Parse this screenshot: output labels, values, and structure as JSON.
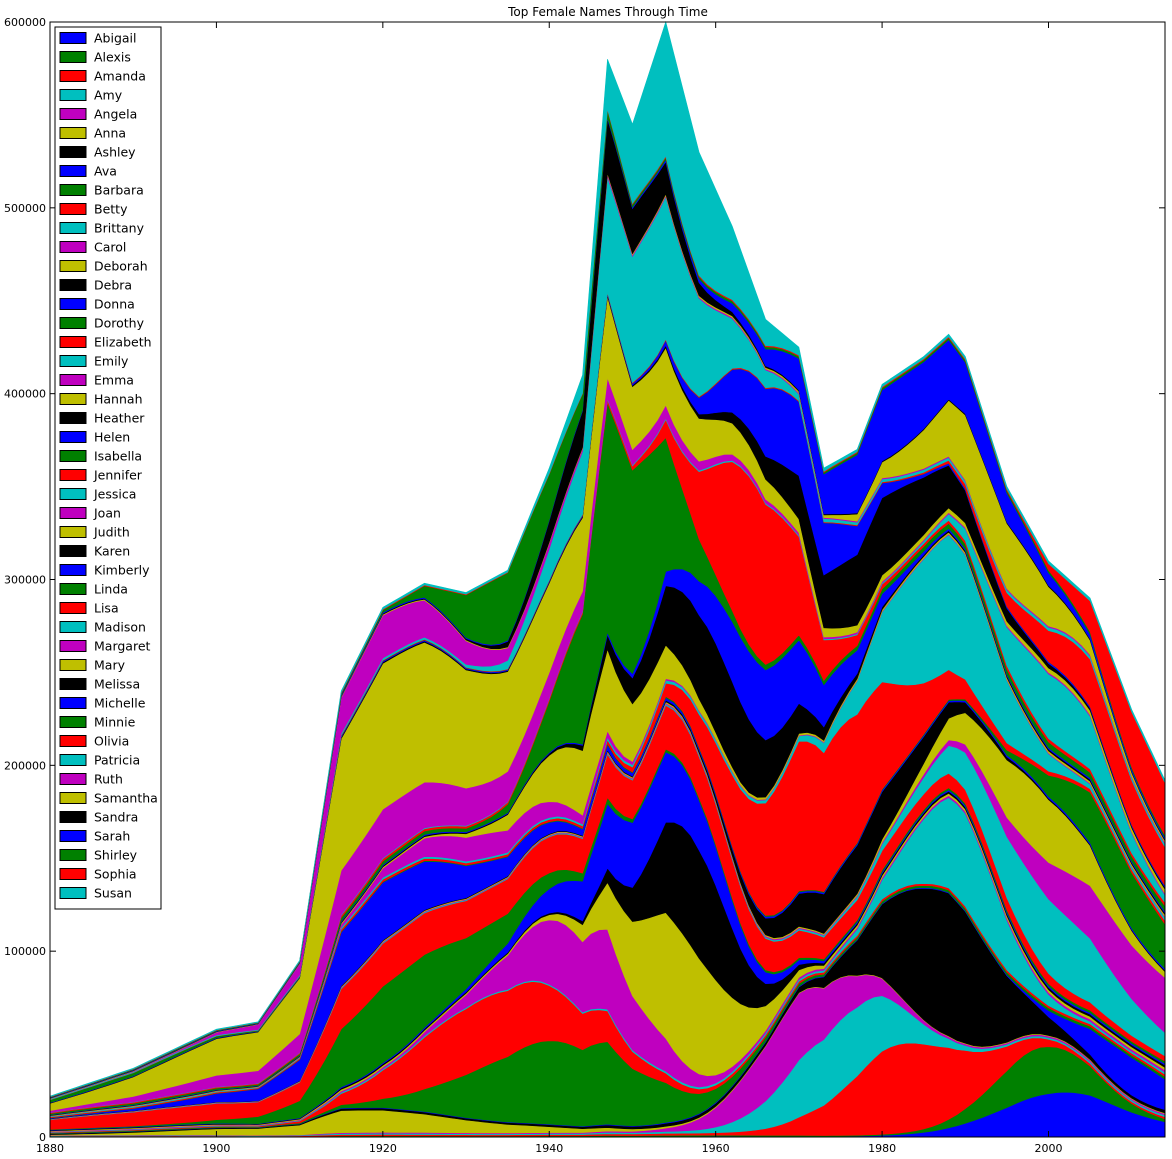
{
  "chart_data": {
    "type": "area",
    "stacked": true,
    "title": "Top Female Names Through Time",
    "xlabel": "",
    "ylabel": "",
    "xlim": [
      1880,
      2014
    ],
    "ylim": [
      0,
      600000
    ],
    "x_ticks": [
      1880,
      1900,
      1920,
      1940,
      1960,
      1980,
      2000
    ],
    "y_ticks": [
      0,
      100000,
      200000,
      300000,
      400000,
      500000,
      600000
    ],
    "grid": false,
    "legend_position": "top-left",
    "color_cycle": [
      "#0000ff",
      "#008000",
      "#ff0000",
      "#00bfbf",
      "#bf00bf",
      "#bfbf00",
      "#000000"
    ],
    "totals_approx": {
      "x": [
        1880,
        1890,
        1900,
        1905,
        1910,
        1915,
        1920,
        1925,
        1930,
        1935,
        1940,
        1944,
        1947,
        1950,
        1954,
        1958,
        1962,
        1966,
        1970,
        1973,
        1977,
        1980,
        1985,
        1988,
        1990,
        1995,
        2000,
        2005,
        2010,
        2014
      ],
      "y": [
        22000,
        37000,
        58000,
        62000,
        95000,
        240000,
        285000,
        298000,
        293000,
        305000,
        360000,
        410000,
        580000,
        545000,
        600000,
        530000,
        490000,
        440000,
        425000,
        360000,
        370000,
        405000,
        420000,
        432000,
        420000,
        350000,
        310000,
        290000,
        230000,
        192000
      ]
    },
    "series": [
      {
        "name": "Abigail",
        "x_peak": 2002,
        "peak": 15000,
        "width": 8
      },
      {
        "name": "Alexis",
        "x_peak": 1999,
        "peak": 16000,
        "width": 6
      },
      {
        "name": "Amanda",
        "x_peak": 1983,
        "peak": 35000,
        "width": 7
      },
      {
        "name": "Amy",
        "x_peak": 1975,
        "peak": 30000,
        "width": 6
      },
      {
        "name": "Angela",
        "x_peak": 1970,
        "peak": 25000,
        "width": 6
      },
      {
        "name": "Anna",
        "x_peak": 1915,
        "peak": 12000,
        "width": 15
      },
      {
        "name": "Ashley",
        "x_peak": 1987,
        "peak": 55000,
        "width": 6
      },
      {
        "name": "Ava",
        "x_peak": 2010,
        "peak": 14000,
        "width": 5
      },
      {
        "name": "Barbara",
        "x_peak": 1940,
        "peak": 45000,
        "width": 9
      },
      {
        "name": "Betty",
        "x_peak": 1933,
        "peak": 40000,
        "width": 9
      },
      {
        "name": "Brittany",
        "x_peak": 1989,
        "peak": 35000,
        "width": 5
      },
      {
        "name": "Carol",
        "x_peak": 1943,
        "peak": 38000,
        "width": 7
      },
      {
        "name": "Deborah",
        "x_peak": 1955,
        "peak": 45000,
        "width": 6
      },
      {
        "name": "Debra",
        "x_peak": 1957,
        "peak": 38000,
        "width": 5
      },
      {
        "name": "Donna",
        "x_peak": 1950,
        "peak": 28000,
        "width": 8
      },
      {
        "name": "Dorothy",
        "x_peak": 1922,
        "peak": 40000,
        "width": 10
      },
      {
        "name": "Elizabeth",
        "x_peak": 1920,
        "peak": 22000,
        "width": 40
      },
      {
        "name": "Emily",
        "x_peak": 2000,
        "peak": 25000,
        "width": 9
      },
      {
        "name": "Emma",
        "x_peak": 2010,
        "peak": 20000,
        "width": 10
      },
      {
        "name": "Hannah",
        "x_peak": 1998,
        "peak": 22000,
        "width": 7
      },
      {
        "name": "Heather",
        "x_peak": 1977,
        "peak": 20000,
        "width": 7
      },
      {
        "name": "Helen",
        "x_peak": 1918,
        "peak": 30000,
        "width": 12
      },
      {
        "name": "Isabella",
        "x_peak": 2009,
        "peak": 21000,
        "width": 6
      },
      {
        "name": "Jennifer",
        "x_peak": 1973,
        "peak": 60000,
        "width": 8
      },
      {
        "name": "Jessica",
        "x_peak": 1987,
        "peak": 52000,
        "width": 6
      },
      {
        "name": "Joan",
        "x_peak": 1932,
        "peak": 14000,
        "width": 8
      },
      {
        "name": "Judith",
        "x_peak": 1945,
        "peak": 35000,
        "width": 6
      },
      {
        "name": "Karen",
        "x_peak": 1960,
        "peak": 30000,
        "width": 7
      },
      {
        "name": "Kimberly",
        "x_peak": 1967,
        "peak": 26000,
        "width": 7
      },
      {
        "name": "Linda",
        "x_peak": 1948,
        "peak": 95000,
        "width": 5
      },
      {
        "name": "Lisa",
        "x_peak": 1965,
        "peak": 60000,
        "width": 5
      },
      {
        "name": "Madison",
        "x_peak": 2001,
        "peak": 22000,
        "width": 6
      },
      {
        "name": "Margaret",
        "x_peak": 1920,
        "peak": 25000,
        "width": 18
      },
      {
        "name": "Mary",
        "x_peak": 1921,
        "peak": 75000,
        "width": 20
      },
      {
        "name": "Melissa",
        "x_peak": 1979,
        "peak": 30000,
        "width": 8
      },
      {
        "name": "Michelle",
        "x_peak": 1969,
        "peak": 28000,
        "width": 6
      },
      {
        "name": "Minnie",
        "x_peak": 1885,
        "peak": 4000,
        "width": 12
      },
      {
        "name": "Olivia",
        "x_peak": 2008,
        "peak": 17000,
        "width": 8
      },
      {
        "name": "Patricia",
        "x_peak": 1951,
        "peak": 55000,
        "width": 7
      },
      {
        "name": "Ruth",
        "x_peak": 1920,
        "peak": 22000,
        "width": 10
      },
      {
        "name": "Samantha",
        "x_peak": 1992,
        "peak": 25000,
        "width": 7
      },
      {
        "name": "Sandra",
        "x_peak": 1947,
        "peak": 22000,
        "width": 6
      },
      {
        "name": "Sarah",
        "x_peak": 1982,
        "peak": 28000,
        "width": 9
      },
      {
        "name": "Shirley",
        "x_peak": 1935,
        "peak": 40000,
        "width": 5
      },
      {
        "name": "Sophia",
        "x_peak": 2011,
        "peak": 21000,
        "width": 5
      },
      {
        "name": "Susan",
        "x_peak": 1955,
        "peak": 48000,
        "width": 6
      }
    ]
  }
}
